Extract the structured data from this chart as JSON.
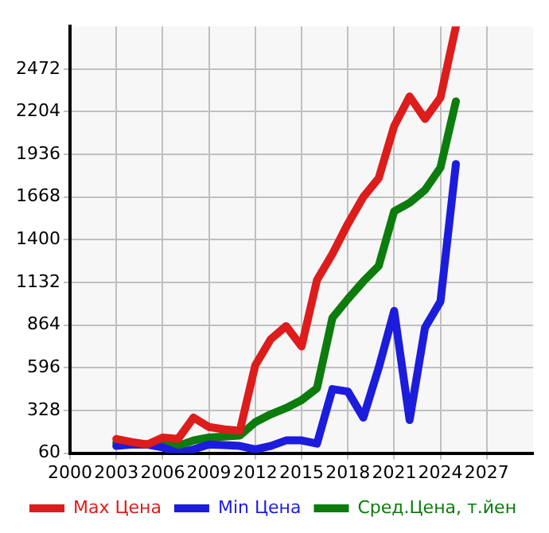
{
  "chart_data": {
    "type": "line",
    "x": [
      2003,
      2004,
      2005,
      2006,
      2007,
      2008,
      2009,
      2010,
      2011,
      2012,
      2013,
      2014,
      2015,
      2016,
      2017,
      2018,
      2019,
      2020,
      2021,
      2022,
      2023,
      2024,
      2025
    ],
    "series": [
      {
        "name": "Max Цена",
        "color": "#dd1c1c",
        "values": [
          149,
          130,
          114,
          158,
          149,
          283,
          224,
          209,
          200,
          611,
          775,
          858,
          730,
          1147,
          1311,
          1500,
          1668,
          1787,
          2114,
          2300,
          2159,
          2293,
          2740
        ]
      },
      {
        "name": "Min Цена",
        "color": "#1c1cdd",
        "values": [
          105,
          114,
          114,
          96,
          60,
          84,
          114,
          111,
          105,
          84,
          105,
          140,
          140,
          120,
          462,
          447,
          283,
          596,
          953,
          268,
          849,
          1013,
          1876
        ]
      },
      {
        "name": "Сред.Цена, т.йен",
        "color": "#0c7c0c",
        "values": [
          125,
          114,
          114,
          125,
          105,
          140,
          158,
          164,
          170,
          254,
          304,
          343,
          393,
          468,
          909,
          1028,
          1138,
          1236,
          1579,
          1632,
          1713,
          1853,
          2269
        ]
      }
    ],
    "xlim": [
      2000,
      2030
    ],
    "xticks": [
      2000,
      2003,
      2006,
      2009,
      2012,
      2015,
      2018,
      2021,
      2024,
      2027
    ],
    "ylim": [
      60,
      2740
    ],
    "yticks": [
      60,
      328,
      596,
      864,
      1132,
      1400,
      1668,
      1936,
      2204,
      2472
    ],
    "grid": true,
    "legend": "bottom",
    "marker": "none",
    "line_style": "solid"
  }
}
